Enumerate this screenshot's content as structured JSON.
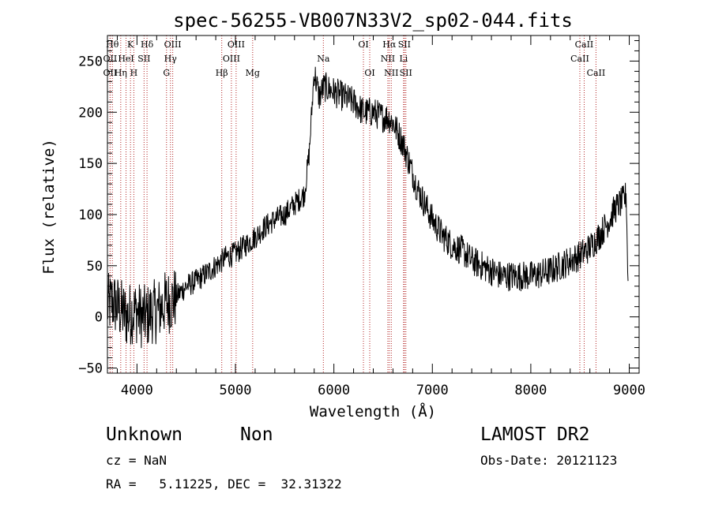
{
  "chart_data": {
    "type": "line",
    "title": "spec-56255-VB007N33V2_sp02-044.fits",
    "xlabel": "Wavelength (Å)",
    "ylabel": "Flux (relative)",
    "xlim": [
      3700,
      9100
    ],
    "ylim": [
      -55,
      275
    ],
    "x_ticks": [
      4000,
      5000,
      6000,
      7000,
      8000,
      9000
    ],
    "y_ticks": [
      -50,
      0,
      50,
      100,
      150,
      200,
      250
    ],
    "x_tick_labels": [
      "4000",
      "5000",
      "6000",
      "7000",
      "8000",
      "9000"
    ],
    "y_tick_labels": [
      "−50",
      "0",
      "50",
      "100",
      "150",
      "200",
      "250"
    ],
    "grid": false,
    "line_color": "#000000",
    "marker_color": "#b22222",
    "spectrum": {
      "x": [
        3700,
        3750,
        3800,
        3850,
        3900,
        3950,
        4000,
        4050,
        4100,
        4150,
        4200,
        4250,
        4300,
        4350,
        4400,
        4450,
        4500,
        4600,
        4700,
        4800,
        4900,
        5000,
        5100,
        5200,
        5300,
        5400,
        5500,
        5600,
        5700,
        5750,
        5800,
        5830,
        5850,
        5900,
        6000,
        6100,
        6200,
        6300,
        6400,
        6500,
        6550,
        6600,
        6650,
        6700,
        6750,
        6800,
        6850,
        6900,
        7000,
        7100,
        7200,
        7300,
        7400,
        7500,
        7600,
        7700,
        7800,
        7900,
        8000,
        8100,
        8200,
        8300,
        8400,
        8500,
        8600,
        8700,
        8800,
        8850,
        8900,
        8950,
        8970,
        8990
      ],
      "y": [
        10,
        15,
        10,
        5,
        0,
        5,
        5,
        0,
        0,
        5,
        5,
        10,
        15,
        15,
        20,
        25,
        30,
        35,
        42,
        50,
        58,
        62,
        70,
        78,
        88,
        95,
        100,
        110,
        120,
        160,
        240,
        225,
        215,
        225,
        220,
        215,
        210,
        200,
        200,
        195,
        195,
        190,
        180,
        170,
        155,
        140,
        125,
        115,
        95,
        80,
        70,
        65,
        55,
        50,
        45,
        40,
        40,
        40,
        40,
        42,
        45,
        50,
        55,
        60,
        68,
        80,
        95,
        105,
        110,
        115,
        120,
        20
      ],
      "noise_amplitude": 10
    },
    "lines": [
      {
        "wavelength": 3750,
        "label": "Hθ",
        "row": 0
      },
      {
        "wavelength": 3727,
        "label": "OII",
        "row": 1
      },
      {
        "wavelength": 3727,
        "label": "OII",
        "row": 2
      },
      {
        "wavelength": 3835,
        "label": "Hη",
        "row": 2
      },
      {
        "wavelength": 3889,
        "label": "HeI",
        "row": 1
      },
      {
        "wavelength": 3934,
        "label": "K",
        "row": 0
      },
      {
        "wavelength": 3968,
        "label": "H",
        "row": 2
      },
      {
        "wavelength": 4072,
        "label": "SII",
        "row": 1
      },
      {
        "wavelength": 4102,
        "label": "Hδ",
        "row": 0
      },
      {
        "wavelength": 4300,
        "label": "G",
        "row": 2
      },
      {
        "wavelength": 4340,
        "label": "Hγ",
        "row": 1
      },
      {
        "wavelength": 4363,
        "label": "OIII",
        "row": 0
      },
      {
        "wavelength": 4861,
        "label": "Hβ",
        "row": 2
      },
      {
        "wavelength": 4959,
        "label": "OIII",
        "row": 1
      },
      {
        "wavelength": 5007,
        "label": "OIII",
        "row": 0
      },
      {
        "wavelength": 5175,
        "label": "Mg",
        "row": 2
      },
      {
        "wavelength": 5893,
        "label": "Na",
        "row": 1
      },
      {
        "wavelength": 6300,
        "label": "OI",
        "row": 0
      },
      {
        "wavelength": 6364,
        "label": "OI",
        "row": 2
      },
      {
        "wavelength": 6548,
        "label": "NII",
        "row": 1
      },
      {
        "wavelength": 6563,
        "label": "Hα",
        "row": 0
      },
      {
        "wavelength": 6583,
        "label": "NII",
        "row": 2
      },
      {
        "wavelength": 6708,
        "label": "Li",
        "row": 1
      },
      {
        "wavelength": 6716,
        "label": "SII",
        "row": 0
      },
      {
        "wavelength": 6731,
        "label": "SII",
        "row": 2
      },
      {
        "wavelength": 8498,
        "label": "CaII",
        "row": 1
      },
      {
        "wavelength": 8542,
        "label": "CaII",
        "row": 0
      },
      {
        "wavelength": 8662,
        "label": "CaII",
        "row": 2
      }
    ]
  },
  "info": {
    "class": "Unknown",
    "subclass": "Non",
    "cz": "cz = NaN",
    "coords": "RA =   5.11225, DEC =  32.31322",
    "survey": "LAMOST DR2",
    "obs_date": "Obs-Date: 20121123"
  }
}
